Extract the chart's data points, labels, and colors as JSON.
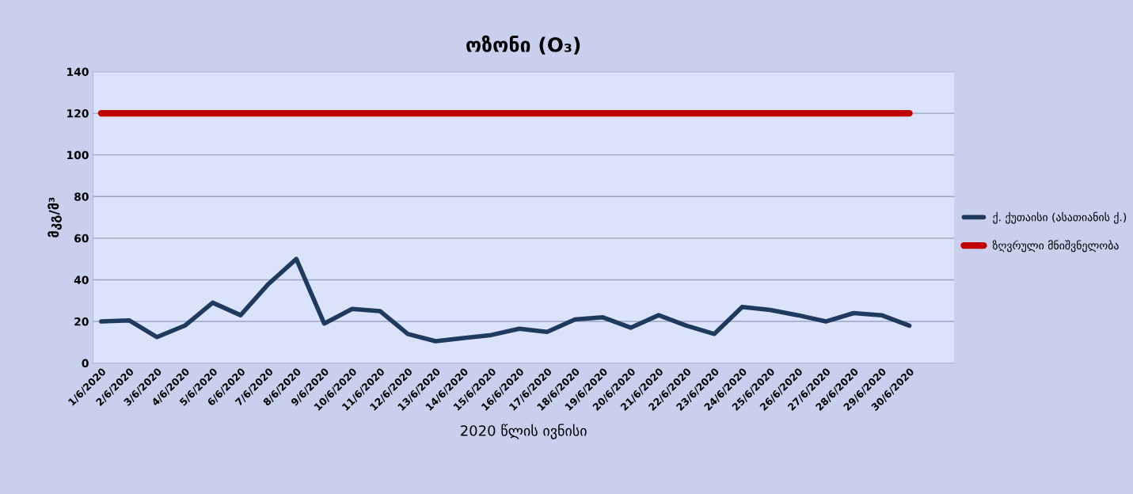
{
  "chart_data": {
    "type": "line",
    "title": "ოზონი (O₃)",
    "xlabel": "2020 წლის ივნისი",
    "ylabel": "მკგ/მ³",
    "categories": [
      "1/6/2020",
      "2/6/2020",
      "3/6/2020",
      "4/6/2020",
      "5/6/2020",
      "6/6/2020",
      "7/6/2020",
      "8/6/2020",
      "9/6/2020",
      "10/6/2020",
      "11/6/2020",
      "12/6/2020",
      "13/6/2020",
      "14/6/2020",
      "15/6/2020",
      "16/6/2020",
      "17/6/2020",
      "18/6/2020",
      "19/6/2020",
      "20/6/2020",
      "21/6/2020",
      "22/6/2020",
      "23/6/2020",
      "24/6/2020",
      "25/6/2020",
      "26/6/2020",
      "27/6/2020",
      "28/6/2020",
      "29/6/2020",
      "30/6/2020"
    ],
    "series": [
      {
        "name": "ქ. ქუთაისი (ასათიანის ქ.)",
        "color": "#1f3a5f",
        "values": [
          20,
          20.5,
          12.5,
          18,
          29,
          23,
          38,
          50,
          19,
          26,
          25,
          14,
          10.5,
          12,
          13.5,
          16.5,
          15,
          21,
          22,
          17,
          23,
          18,
          14,
          27,
          25.5,
          23,
          20,
          24,
          23,
          18
        ]
      },
      {
        "name": "ზღვრული მნიშვნელობა",
        "color": "#c00000",
        "values": [
          120,
          120,
          120,
          120,
          120,
          120,
          120,
          120,
          120,
          120,
          120,
          120,
          120,
          120,
          120,
          120,
          120,
          120,
          120,
          120,
          120,
          120,
          120,
          120,
          120,
          120,
          120,
          120,
          120,
          120
        ]
      }
    ],
    "ylim": [
      0,
      140
    ],
    "yticks": [
      0,
      20,
      40,
      60,
      80,
      100,
      120,
      140
    ],
    "grid": "y",
    "legend": "right",
    "marker": "none",
    "line_style": "solid"
  }
}
